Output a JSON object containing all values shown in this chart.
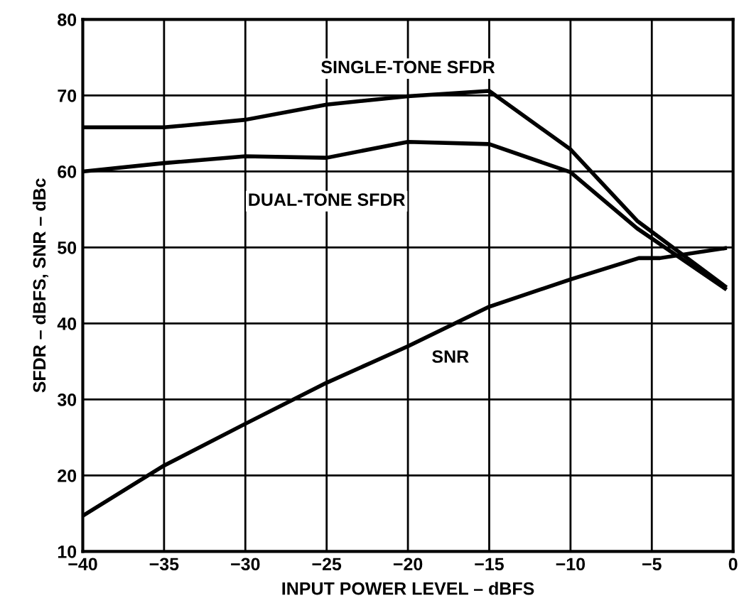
{
  "chart_data": {
    "type": "line",
    "xlabel": "INPUT POWER LEVEL – dBFS",
    "ylabel": "SFDR – dBFS, SNR – dBc",
    "series": [
      {
        "name": "SINGLE-TONE SFDR",
        "color": "#000000",
        "x": [
          -40,
          -35,
          -30,
          -25,
          -20,
          -15,
          -10,
          -5.9,
          -0.5
        ],
        "values": [
          65.8,
          65.8,
          66.8,
          68.8,
          69.9,
          70.6,
          62.9,
          53.5,
          44.9
        ]
      },
      {
        "name": "DUAL-TONE SFDR",
        "color": "#000000",
        "x": [
          -40,
          -35,
          -30,
          -25,
          -20,
          -15,
          -10,
          -5.9,
          -0.5
        ],
        "values": [
          60.0,
          61.1,
          62.0,
          61.8,
          63.9,
          63.6,
          59.9,
          52.5,
          44.6
        ]
      },
      {
        "name": "SNR",
        "color": "#000000",
        "x": [
          -40,
          -35,
          -30,
          -25,
          -20,
          -15,
          -10,
          -5.8,
          -4.5,
          -0.5
        ],
        "values": [
          14.7,
          21.3,
          26.8,
          32.2,
          37.0,
          42.2,
          45.8,
          48.6,
          48.6,
          49.9
        ]
      }
    ],
    "xlim": [
      -40,
      0
    ],
    "xticks": [
      {
        "value": -40,
        "label": "−40"
      },
      {
        "value": -35,
        "label": "−35"
      },
      {
        "value": -30,
        "label": "−30"
      },
      {
        "value": -25,
        "label": "−25"
      },
      {
        "value": -20,
        "label": "−20"
      },
      {
        "value": -15,
        "label": "−15"
      },
      {
        "value": -10,
        "label": "−10"
      },
      {
        "value": -5,
        "label": "−5"
      },
      0
    ],
    "ylim": [
      10,
      80
    ],
    "yticks": [
      10,
      20,
      30,
      40,
      50,
      60,
      70,
      80
    ],
    "grid": true,
    "legend": false,
    "marker": "none",
    "line_style": "solid"
  }
}
